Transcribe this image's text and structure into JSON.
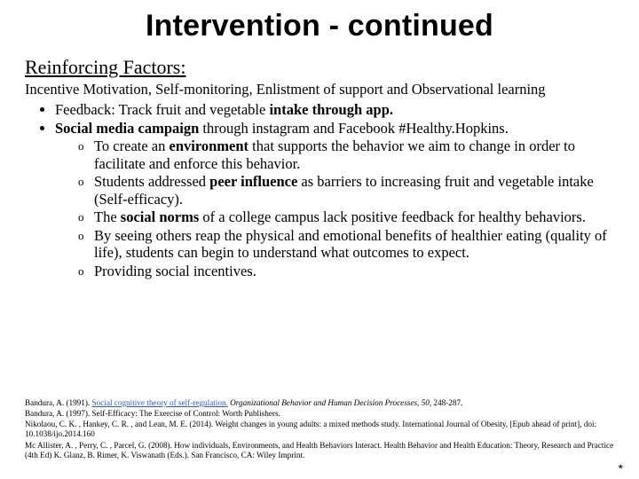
{
  "title": "Intervention - continued",
  "subhead": "Reinforcing Factors:",
  "lead": "Incentive Motivation, Self-monitoring, Enlistment of support and Observational learning",
  "bullets": {
    "b1_pre": "Feedback: Track fruit and vegetable ",
    "b1_bold": "intake through app.",
    "b2_bold": "Social media campaign",
    "b2_rest": " through instagram and Facebook #Healthy.Hopkins.",
    "s1_pre": "To create an ",
    "s1_bold": "environment",
    "s1_rest": " that supports the behavior we aim to change in order to facilitate and enforce this behavior.",
    "s2_pre": "Students addressed ",
    "s2_bold": "peer influence",
    "s2_rest": " as barriers to increasing fruit and vegetable intake (Self-efficacy).",
    "s3_pre": "The ",
    "s3_bold": "social norms",
    "s3_rest": " of a college campus lack positive feedback for healthy behaviors.",
    "s4": "By seeing others reap the physical and emotional benefits of healthier eating (quality of life), students can begin to understand what outcomes to expect.",
    "s5": "Providing social incentives."
  },
  "refs": {
    "r1_a": "Bandura, A. (1991). ",
    "r1_link": "Social cognitive theory of self-regulation.",
    "r1_b": " ",
    "r1_ital": "Organizational Behavior and Human Decision Processes, 50",
    "r1_c": ", 248-287.",
    "r2": "Bandura, A. (1997). Self-Efficacy: The Exercise of Control: Worth Publishers.",
    "r3": "Nikolaou, C. K. , Hankey, C. R. , and Lean, M. E. (2014). Weight changes in young adults: a mixed methods study. International Journal of Obesity, [Epub ahead of print], doi: 10.1038/ijo.2014.160",
    "r4": "Mc Allister, A. , Perry, C. , Parcel, G. (2008). How individuals, Environments, and Health Behaviors Interact. Health Behavior and Health Education: Theory, Research and Practice (4th Ed) K. Glanz, B. Rimer, K. Viswanath (Eds.). San Francisco, CA: Wiley Imprint."
  },
  "asterisk": "*",
  "colors": {
    "text": "#000000",
    "link": "#2a5db0",
    "background": "#ffffff"
  }
}
